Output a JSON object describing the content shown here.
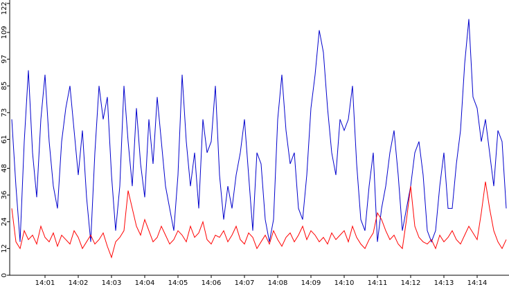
{
  "chart_data": {
    "type": "line",
    "categories": [
      null,
      null,
      null,
      null,
      null,
      null,
      null,
      null,
      "14:01",
      null,
      null,
      null,
      null,
      null,
      null,
      null,
      "14:02",
      null,
      null,
      null,
      null,
      null,
      null,
      null,
      "14:03",
      null,
      null,
      null,
      null,
      null,
      null,
      null,
      "14:04",
      null,
      null,
      null,
      null,
      null,
      null,
      null,
      "14:05",
      null,
      null,
      null,
      null,
      null,
      null,
      null,
      "14:06",
      null,
      null,
      null,
      null,
      null,
      null,
      null,
      "14:07",
      null,
      null,
      null,
      null,
      null,
      null,
      null,
      "14:08",
      null,
      null,
      null,
      null,
      null,
      null,
      null,
      "14:09",
      null,
      null,
      null,
      null,
      null,
      null,
      null,
      "14:10",
      null,
      null,
      null,
      null,
      null,
      null,
      null,
      "14:11",
      null,
      null,
      null,
      null,
      null,
      null,
      null,
      "14:12",
      null,
      null,
      null,
      null,
      null,
      null,
      null,
      "14:13",
      null,
      null,
      null,
      null,
      null,
      null,
      null,
      "14:14",
      null,
      null,
      null,
      null,
      null,
      null,
      null
    ],
    "series": [
      {
        "color": "#0000cc",
        "values": [
          70,
          40,
          15,
          60,
          92,
          55,
          35,
          70,
          90,
          60,
          40,
          30,
          60,
          75,
          85,
          65,
          45,
          65,
          35,
          15,
          55,
          85,
          70,
          80,
          45,
          20,
          40,
          85,
          60,
          40,
          75,
          50,
          35,
          70,
          50,
          80,
          60,
          40,
          30,
          20,
          45,
          90,
          60,
          40,
          55,
          30,
          70,
          55,
          60,
          85,
          45,
          25,
          40,
          30,
          45,
          55,
          70,
          45,
          20,
          55,
          50,
          25,
          15,
          25,
          70,
          90,
          65,
          50,
          55,
          30,
          25,
          45,
          75,
          90,
          110,
          100,
          75,
          55,
          45,
          70,
          65,
          70,
          85,
          50,
          25,
          20,
          40,
          55,
          15,
          30,
          40,
          55,
          65,
          45,
          20,
          30,
          40,
          55,
          60,
          45,
          20,
          15,
          20,
          40,
          55,
          30,
          30,
          50,
          65,
          95,
          115,
          80,
          75,
          60,
          70,
          55,
          40,
          65,
          60,
          30
        ]
      },
      {
        "color": "#ff0000",
        "values": [
          30,
          15,
          12,
          20,
          16,
          18,
          14,
          22,
          17,
          15,
          19,
          13,
          18,
          16,
          14,
          20,
          17,
          12,
          15,
          18,
          14,
          16,
          19,
          13,
          8,
          15,
          17,
          20,
          38,
          30,
          22,
          18,
          25,
          20,
          15,
          17,
          22,
          18,
          14,
          16,
          20,
          18,
          15,
          22,
          17,
          19,
          24,
          16,
          14,
          18,
          17,
          20,
          15,
          18,
          22,
          16,
          14,
          19,
          17,
          12,
          15,
          18,
          14,
          20,
          16,
          13,
          17,
          19,
          15,
          18,
          22,
          16,
          20,
          18,
          15,
          17,
          14,
          19,
          16,
          18,
          20,
          15,
          22,
          17,
          14,
          12,
          16,
          19,
          28,
          25,
          20,
          16,
          18,
          14,
          12,
          25,
          40,
          22,
          17,
          15,
          14,
          16,
          12,
          18,
          15,
          17,
          20,
          16,
          14,
          18,
          22,
          19,
          16,
          28,
          42,
          30,
          20,
          15,
          12,
          16
        ]
      }
    ],
    "ylim": [
      0,
      122
    ],
    "yticks": [
      0,
      12,
      24,
      36,
      48,
      61,
      73,
      85,
      97,
      109,
      122
    ],
    "grid": false
  }
}
